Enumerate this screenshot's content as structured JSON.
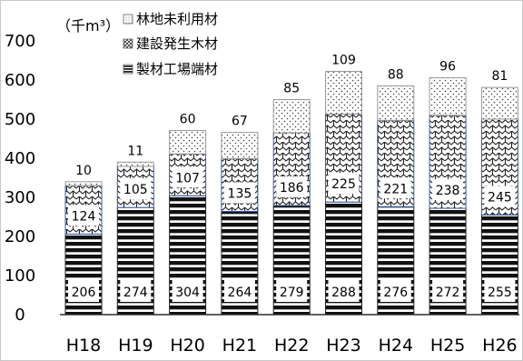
{
  "chart_data": {
    "type": "bar",
    "stacked": true,
    "unit_label": "（千m³）",
    "categories": [
      "H18",
      "H19",
      "H20",
      "H21",
      "H22",
      "H23",
      "H24",
      "H25",
      "H26"
    ],
    "y_ticks": [
      "0",
      "100",
      "200",
      "300",
      "400",
      "500",
      "600",
      "700"
    ],
    "ylim": [
      0,
      700
    ],
    "grid": false,
    "legend_position": "top-left",
    "series": [
      {
        "name": "製材工場端材",
        "values": [
          206,
          274,
          304,
          264,
          279,
          288,
          276,
          272,
          255
        ],
        "labels": [
          "206",
          "274",
          "304",
          "264",
          "279",
          "288",
          "276",
          "272",
          "255"
        ],
        "pattern": "horizontal-stripes"
      },
      {
        "name": "建設発生木材",
        "values": [
          124,
          105,
          107,
          135,
          186,
          225,
          221,
          238,
          245
        ],
        "labels": [
          "124",
          "105",
          "107",
          "135",
          "186",
          "225",
          "221",
          "238",
          "245"
        ],
        "pattern": "zigzag"
      },
      {
        "name": "林地未利用材",
        "values": [
          10,
          11,
          60,
          67,
          85,
          109,
          88,
          96,
          81
        ],
        "labels": [
          "10",
          "11",
          "60",
          "67",
          "85",
          "109",
          "88",
          "96",
          "81"
        ],
        "pattern": "dots"
      }
    ]
  }
}
